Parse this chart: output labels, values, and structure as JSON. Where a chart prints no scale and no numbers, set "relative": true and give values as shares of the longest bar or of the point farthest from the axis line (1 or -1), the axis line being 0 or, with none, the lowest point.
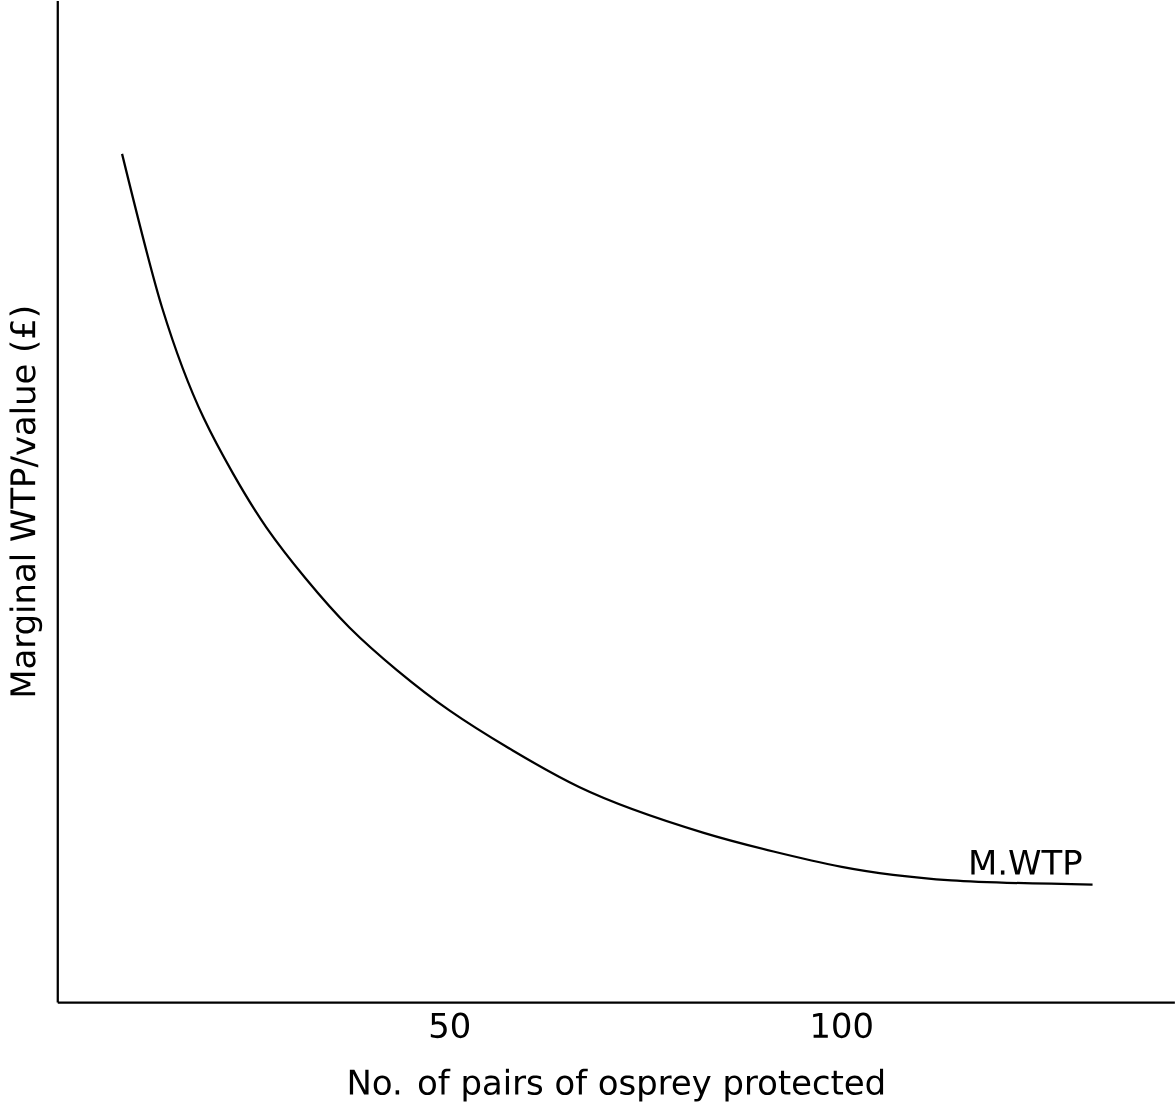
{
  "chart_data": {
    "type": "line",
    "relative": true,
    "xlabel": "No. of pairs of osprey protected",
    "ylabel": "Marginal WTP/value (£)",
    "x": [
      8.2,
      13.3,
      18.6,
      26.6,
      37.2,
      50,
      66.5,
      82.4,
      100,
      114,
      132
    ],
    "values": [
      1,
      0.819,
      0.689,
      0.56,
      0.442,
      0.344,
      0.254,
      0.2,
      0.16,
      0.144,
      0.139
    ],
    "color": "#000000",
    "xlim": [
      0,
      142.5
    ],
    "xticks": [
      50,
      100
    ],
    "tick_labels": "x",
    "grid": false,
    "marker": "none",
    "line_style": "solid",
    "annotations": [
      {
        "text": "M.WTP",
        "x": 132,
        "y": 0.139
      }
    ]
  }
}
